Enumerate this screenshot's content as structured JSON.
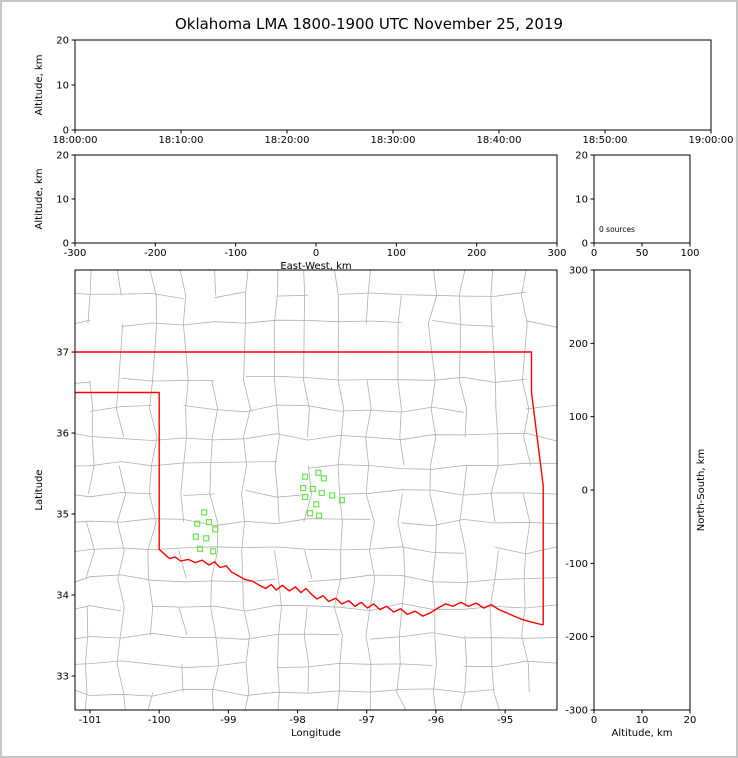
{
  "title": "Oklahoma LMA 1800-1900 UTC November 25, 2019",
  "colors": {
    "state_border": "#ff0000",
    "county_line": "#b0b0b0",
    "station": "#6ce34f",
    "axis": "#000000",
    "background": "#ffffff",
    "frame": "#c6c6c6"
  },
  "chart_data": [
    {
      "id": "time_height",
      "type": "scatter",
      "xlabel": "",
      "ylabel": "Altitude, km",
      "xlim": [
        0,
        6
      ],
      "xticks": {
        "pos": [
          0,
          1,
          2,
          3,
          4,
          5,
          6
        ],
        "labels": [
          "18:00:00",
          "18:10:00",
          "18:20:00",
          "18:30:00",
          "18:40:00",
          "18:50:00",
          "19:00:00"
        ]
      },
      "ylim": [
        0,
        20
      ],
      "yticks": {
        "pos": [
          0,
          10,
          20
        ],
        "labels": [
          "0",
          "10",
          "20"
        ]
      },
      "points": []
    },
    {
      "id": "east_west",
      "type": "scatter",
      "xlabel": "East-West, km",
      "ylabel": "Altitude, km",
      "xlim": [
        -300,
        300
      ],
      "xticks": {
        "pos": [
          -300,
          -200,
          -100,
          0,
          100,
          200,
          300
        ],
        "labels": [
          "-300",
          "-200",
          "-100",
          "0",
          "100",
          "200",
          "300"
        ]
      },
      "ylim": [
        0,
        20
      ],
      "yticks": {
        "pos": [
          0,
          10,
          20
        ],
        "labels": [
          "0",
          "10",
          "20"
        ]
      },
      "points": []
    },
    {
      "id": "src_histogram",
      "type": "line",
      "xlabel": "",
      "annotation": "0 sources",
      "xlim": [
        0,
        100
      ],
      "xticks": {
        "pos": [
          0,
          50,
          100
        ],
        "labels": [
          "0",
          "50",
          "100"
        ]
      },
      "ylim": [
        0,
        20
      ],
      "yticks": {
        "pos": [
          0,
          10,
          20
        ],
        "labels": [
          "0",
          "10",
          "20"
        ]
      },
      "points": []
    },
    {
      "id": "plan_view",
      "type": "scatter",
      "xlabel": "Longitude",
      "ylabel": "Latitude",
      "xlim": [
        -101.217,
        -94.25
      ],
      "xticks": {
        "pos": [
          -101,
          -100,
          -99,
          -98,
          -97,
          -96,
          -95
        ],
        "labels": [
          "-101",
          "-100",
          "-99",
          "-98",
          "-97",
          "-96",
          "-95"
        ]
      },
      "ylim": [
        32.58,
        38.013
      ],
      "yticks": {
        "pos": [
          33,
          34,
          35,
          36,
          37
        ],
        "labels": [
          "33",
          "34",
          "35",
          "36",
          "37"
        ]
      },
      "marker": "open-square",
      "stations": [
        [
          -99.35,
          35.02
        ],
        [
          -99.45,
          34.88
        ],
        [
          -99.28,
          34.9
        ],
        [
          -99.19,
          34.81
        ],
        [
          -99.47,
          34.72
        ],
        [
          -99.32,
          34.7
        ],
        [
          -99.41,
          34.57
        ],
        [
          -99.22,
          34.54
        ],
        [
          -97.89,
          35.46
        ],
        [
          -97.7,
          35.51
        ],
        [
          -97.92,
          35.32
        ],
        [
          -97.78,
          35.31
        ],
        [
          -97.62,
          35.44
        ],
        [
          -97.65,
          35.26
        ],
        [
          -97.89,
          35.21
        ],
        [
          -97.73,
          35.12
        ],
        [
          -97.5,
          35.23
        ],
        [
          -97.36,
          35.17
        ],
        [
          -97.82,
          35.01
        ],
        [
          -97.69,
          34.98
        ]
      ]
    },
    {
      "id": "north_south",
      "type": "scatter",
      "xlabel": "Altitude, km",
      "ylabel": "North-South, km",
      "ylabel_side": "right",
      "xlim": [
        0,
        20
      ],
      "xticks": {
        "pos": [
          0,
          10,
          20
        ],
        "labels": [
          "0",
          "10",
          "20"
        ]
      },
      "ylim": [
        -300,
        300
      ],
      "yticks": {
        "pos": [
          -300,
          -200,
          -100,
          0,
          100,
          200,
          300
        ],
        "labels": [
          "-300",
          "-200",
          "-100",
          "0",
          "100",
          "200",
          "300"
        ]
      },
      "points": []
    }
  ],
  "map": {
    "state_boundary": [
      [
        [
          -101.25,
          37.0
        ],
        [
          -94.618,
          37.0
        ],
        [
          -94.618,
          36.5
        ],
        [
          -94.45,
          35.35
        ],
        [
          -94.45,
          33.63
        ]
      ],
      [
        [
          -101.25,
          36.5
        ],
        [
          -100.0,
          36.5
        ],
        [
          -100.0,
          34.563
        ],
        [
          -99.93,
          34.51
        ],
        [
          -99.85,
          34.45
        ],
        [
          -99.77,
          34.47
        ],
        [
          -99.69,
          34.42
        ],
        [
          -99.58,
          34.44
        ],
        [
          -99.48,
          34.4
        ],
        [
          -99.38,
          34.43
        ],
        [
          -99.28,
          34.37
        ],
        [
          -99.2,
          34.41
        ],
        [
          -99.12,
          34.34
        ],
        [
          -99.03,
          34.36
        ],
        [
          -98.95,
          34.28
        ],
        [
          -98.86,
          34.24
        ],
        [
          -98.76,
          34.19
        ],
        [
          -98.65,
          34.17
        ],
        [
          -98.55,
          34.12
        ],
        [
          -98.46,
          34.08
        ],
        [
          -98.38,
          34.13
        ],
        [
          -98.31,
          34.06
        ],
        [
          -98.22,
          34.12
        ],
        [
          -98.12,
          34.05
        ],
        [
          -98.03,
          34.1
        ],
        [
          -97.95,
          34.03
        ],
        [
          -97.88,
          34.08
        ],
        [
          -97.8,
          34.01
        ],
        [
          -97.72,
          33.95
        ],
        [
          -97.63,
          33.99
        ],
        [
          -97.55,
          33.92
        ],
        [
          -97.45,
          33.96
        ],
        [
          -97.36,
          33.89
        ],
        [
          -97.26,
          33.93
        ],
        [
          -97.17,
          33.86
        ],
        [
          -97.08,
          33.91
        ],
        [
          -96.99,
          33.84
        ],
        [
          -96.9,
          33.89
        ],
        [
          -96.81,
          33.82
        ],
        [
          -96.71,
          33.86
        ],
        [
          -96.61,
          33.79
        ],
        [
          -96.51,
          33.83
        ],
        [
          -96.41,
          33.76
        ],
        [
          -96.3,
          33.8
        ],
        [
          -96.19,
          33.74
        ],
        [
          -96.08,
          33.78
        ],
        [
          -95.97,
          33.84
        ],
        [
          -95.86,
          33.89
        ],
        [
          -95.75,
          33.86
        ],
        [
          -95.64,
          33.91
        ],
        [
          -95.53,
          33.86
        ],
        [
          -95.42,
          33.9
        ],
        [
          -95.31,
          33.84
        ],
        [
          -95.2,
          33.88
        ],
        [
          -95.09,
          33.82
        ],
        [
          -94.98,
          33.78
        ],
        [
          -94.87,
          33.74
        ],
        [
          -94.76,
          33.7
        ],
        [
          -94.64,
          33.67
        ],
        [
          -94.45,
          33.63
        ]
      ]
    ],
    "county_grid": {
      "lons": [
        -101.0,
        -100.55,
        -100.1,
        -99.65,
        -99.2,
        -98.75,
        -98.3,
        -97.85,
        -97.4,
        -96.95,
        -96.5,
        -96.05,
        -95.6,
        -95.15,
        -94.7
      ],
      "lats": [
        32.8,
        33.15,
        33.5,
        33.85,
        34.2,
        34.55,
        34.9,
        35.25,
        35.6,
        35.95,
        36.3,
        36.65,
        37.35,
        37.7
      ]
    }
  }
}
